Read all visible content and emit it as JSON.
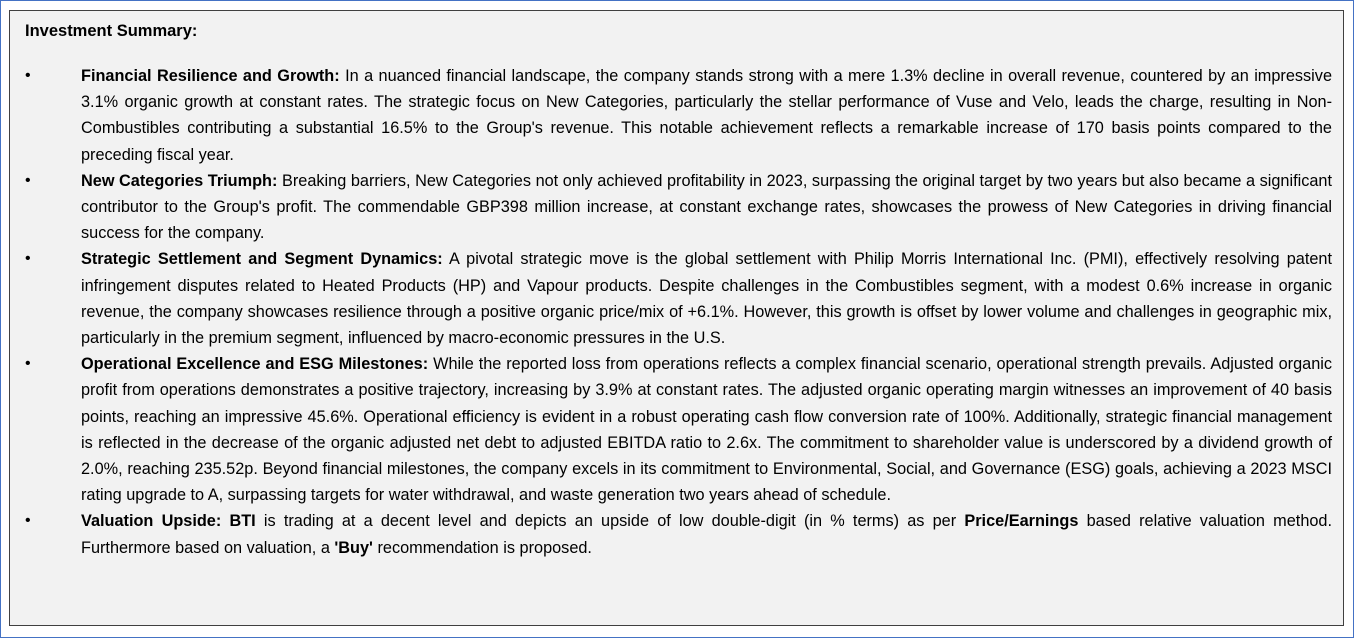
{
  "title": "Investment Summary:",
  "items": [
    {
      "heading": "Financial Resilience and Growth:",
      "text": " In a nuanced financial landscape, the company stands strong with a mere 1.3% decline in overall revenue, countered by an impressive 3.1% organic growth at constant rates. The strategic focus on New Categories, particularly the stellar performance of Vuse and Velo, leads the charge, resulting in Non-Combustibles contributing a substantial 16.5% to the Group's revenue. This notable achievement reflects a remarkable increase of 170 basis points compared to the preceding fiscal year."
    },
    {
      "heading": "New Categories Triumph:",
      "text": " Breaking barriers, New Categories not only achieved profitability in 2023, surpassing the original target by two years but also became a significant contributor to the Group's profit. The commendable GBP398 million increase, at constant exchange rates, showcases the prowess of New Categories in driving financial success for the company."
    },
    {
      "heading": "Strategic Settlement and Segment Dynamics:",
      "text": " A pivotal strategic move is the global settlement with Philip Morris International Inc. (PMI), effectively resolving patent infringement disputes related to Heated Products (HP) and Vapour products. Despite challenges in the Combustibles segment, with a modest 0.6% increase in organic revenue, the company showcases resilience through a positive organic price/mix of +6.1%. However, this growth is offset by lower volume and challenges in geographic mix, particularly in the premium segment, influenced by macro-economic pressures in the U.S."
    },
    {
      "heading": "Operational Excellence and ESG Milestones:",
      "text": " While the reported loss from operations reflects a complex financial scenario, operational strength prevails. Adjusted organic profit from operations demonstrates a positive trajectory, increasing by 3.9% at constant rates. The adjusted organic operating margin witnesses an improvement of 40 basis points, reaching an impressive 45.6%. Operational efficiency is evident in a robust operating cash flow conversion rate of 100%. Additionally, strategic financial management is reflected in the decrease of the organic adjusted net debt to adjusted EBITDA ratio to 2.6x. The commitment to shareholder value is underscored by a dividend growth of 2.0%, reaching 235.52p. Beyond financial milestones, the company excels in its commitment to Environmental, Social, and Governance (ESG) goals, achieving a 2023 MSCI rating upgrade to A, surpassing targets for water withdrawal, and waste generation two years ahead of schedule."
    }
  ],
  "valuation": {
    "heading": "Valuation Upside:",
    "ticker": "BTI",
    "text1": " is trading at a decent level and depicts an upside of low double-digit (in % terms) as per ",
    "method": "Price/Earnings",
    "text2": " based relative valuation method. Furthermore based on valuation, a ",
    "recommendation": "'Buy'",
    "text3": " recommendation is proposed."
  },
  "bullet": "•",
  "colors": {
    "border": "#4472c4",
    "background": "#f2f2f2"
  }
}
